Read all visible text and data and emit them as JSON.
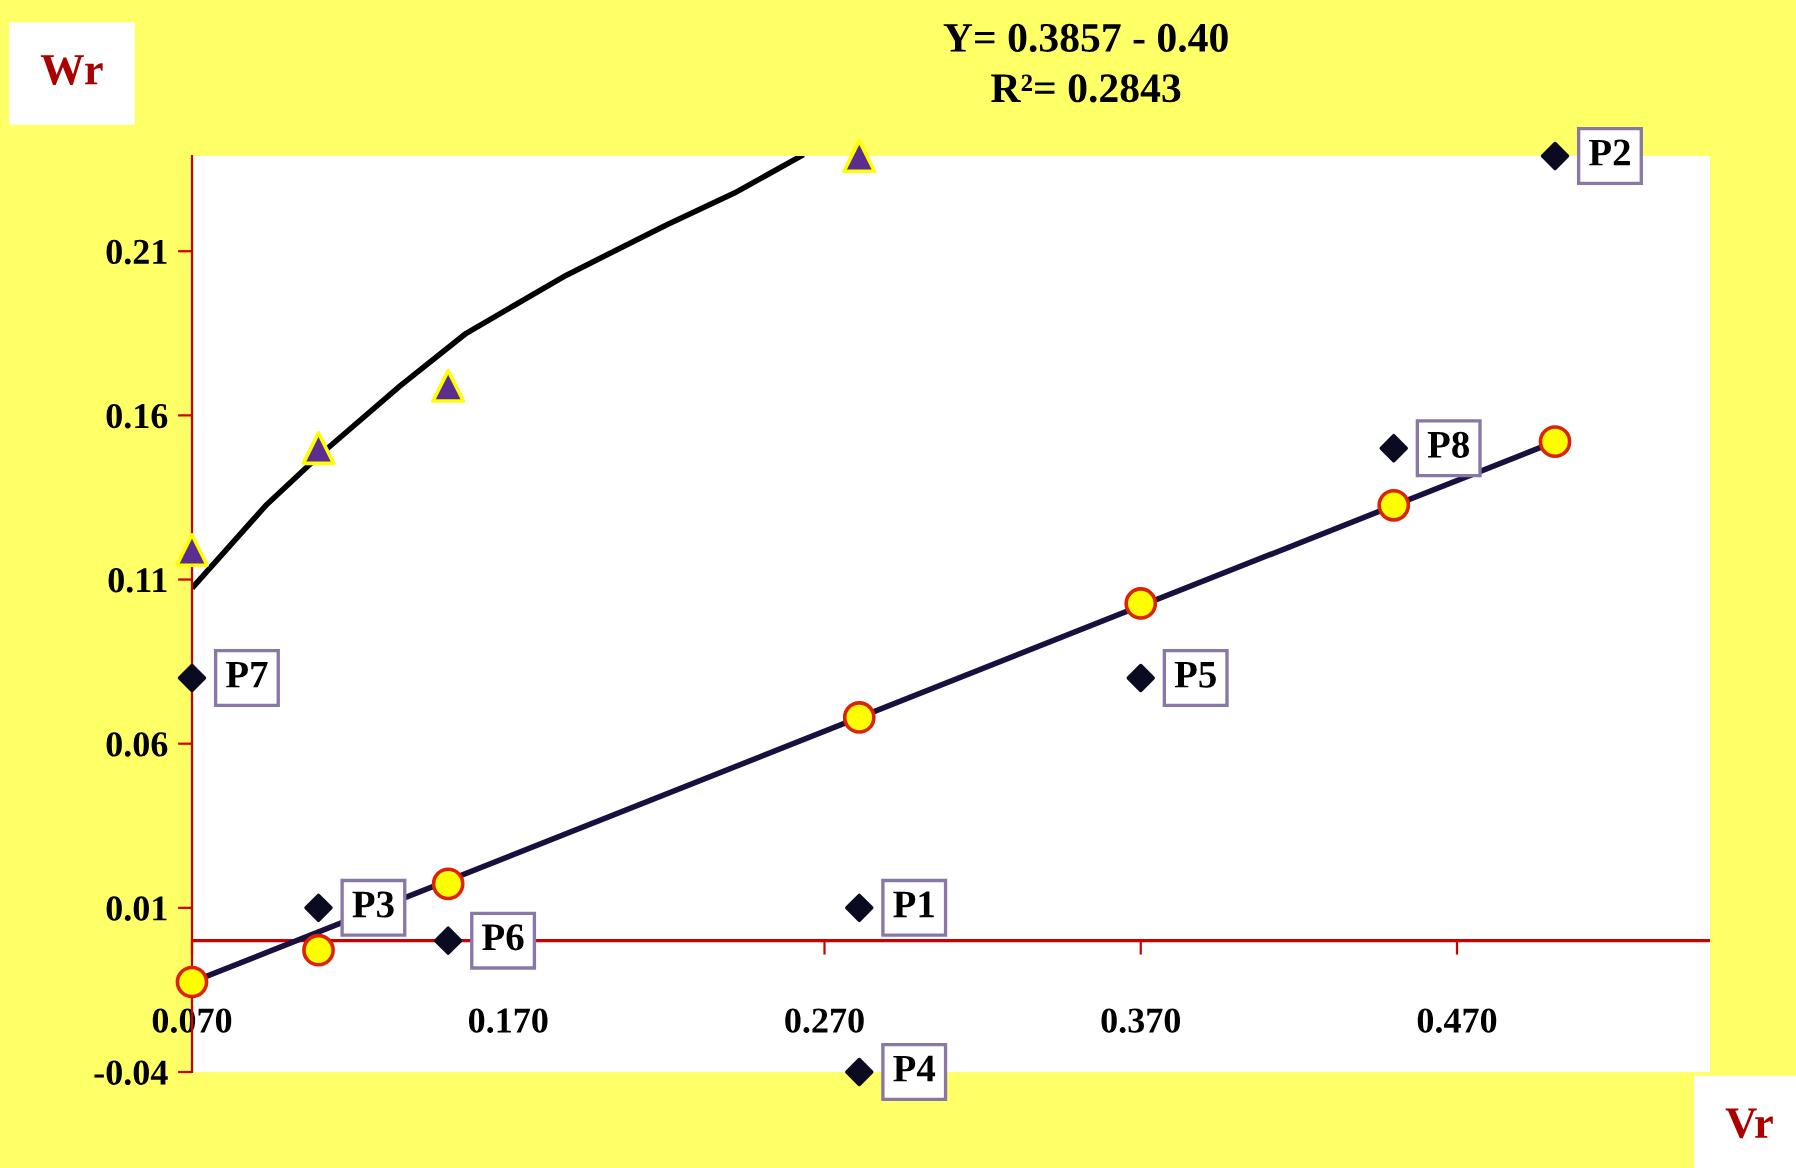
{
  "chart_data": {
    "type": "scatter",
    "xlabel": "Vr",
    "ylabel": "Wr",
    "xlim": [
      0.07,
      0.55
    ],
    "ylim": [
      -0.04,
      0.239
    ],
    "xticks": [
      {
        "value": 0.07,
        "label": "0.070"
      },
      {
        "value": 0.17,
        "label": "0.170"
      },
      {
        "value": 0.27,
        "label": "0.270"
      },
      {
        "value": 0.37,
        "label": "0.370"
      },
      {
        "value": 0.47,
        "label": "0.470"
      }
    ],
    "yticks": [
      -0.04,
      0.01,
      0.06,
      0.11,
      0.16,
      0.21
    ],
    "grid": false,
    "legend": false,
    "ref_lines": [
      {
        "axis": "y",
        "value": 0,
        "color": "#cc0000"
      }
    ],
    "series": [
      {
        "type": "line",
        "color": "#000000",
        "marker": "none",
        "x": [
          0.0706,
          0.0934,
          0.1105,
          0.1358,
          0.1567,
          0.1884,
          0.22,
          0.2415,
          0.2626
        ],
        "values": [
          0.108,
          0.1326,
          0.148,
          0.169,
          0.185,
          0.2027,
          0.218,
          0.2277,
          0.239
        ]
      },
      {
        "type": "line",
        "color": "#1a1040",
        "marker": "none",
        "x": [
          0.07,
          0.501
        ],
        "values": [
          -0.0126,
          0.152
        ]
      },
      {
        "color": "#ffff00",
        "marker": "circle",
        "x": [
          0.07,
          0.11,
          0.151,
          0.281,
          0.37,
          0.45,
          0.501
        ],
        "values": [
          -0.0126,
          -0.0029,
          0.0173,
          0.068,
          0.1027,
          0.1326,
          0.152
        ]
      },
      {
        "color": "#5b2d8e",
        "marker": "triangle",
        "x": [
          0.07,
          0.11,
          0.151,
          0.281
        ],
        "values": [
          0.119,
          0.15,
          0.169,
          0.239
        ]
      },
      {
        "color": "#0a0a20",
        "marker": "diamond",
        "x": [
          0.281,
          0.501,
          0.11,
          0.281,
          0.37,
          0.151,
          0.07,
          0.45
        ],
        "values": [
          0.01,
          0.239,
          0.01,
          -0.04,
          0.08,
          0.0,
          0.08,
          0.15
        ]
      }
    ],
    "annotations": [
      "Y= 0.3857 - 0.40",
      "R²= 0.2843",
      {
        "text": "P1",
        "x": 0.281,
        "y": 0.01
      },
      {
        "text": "P2",
        "x": 0.501,
        "y": 0.239
      },
      {
        "text": "P3",
        "x": 0.11,
        "y": 0.01
      },
      {
        "text": "P4",
        "x": 0.281,
        "y": -0.04
      },
      {
        "text": "P5",
        "x": 0.37,
        "y": 0.08
      },
      {
        "text": "P6",
        "x": 0.151,
        "y": 0.0
      },
      {
        "text": "P7",
        "x": 0.07,
        "y": 0.08
      },
      {
        "text": "P8",
        "x": 0.45,
        "y": 0.15
      }
    ]
  }
}
